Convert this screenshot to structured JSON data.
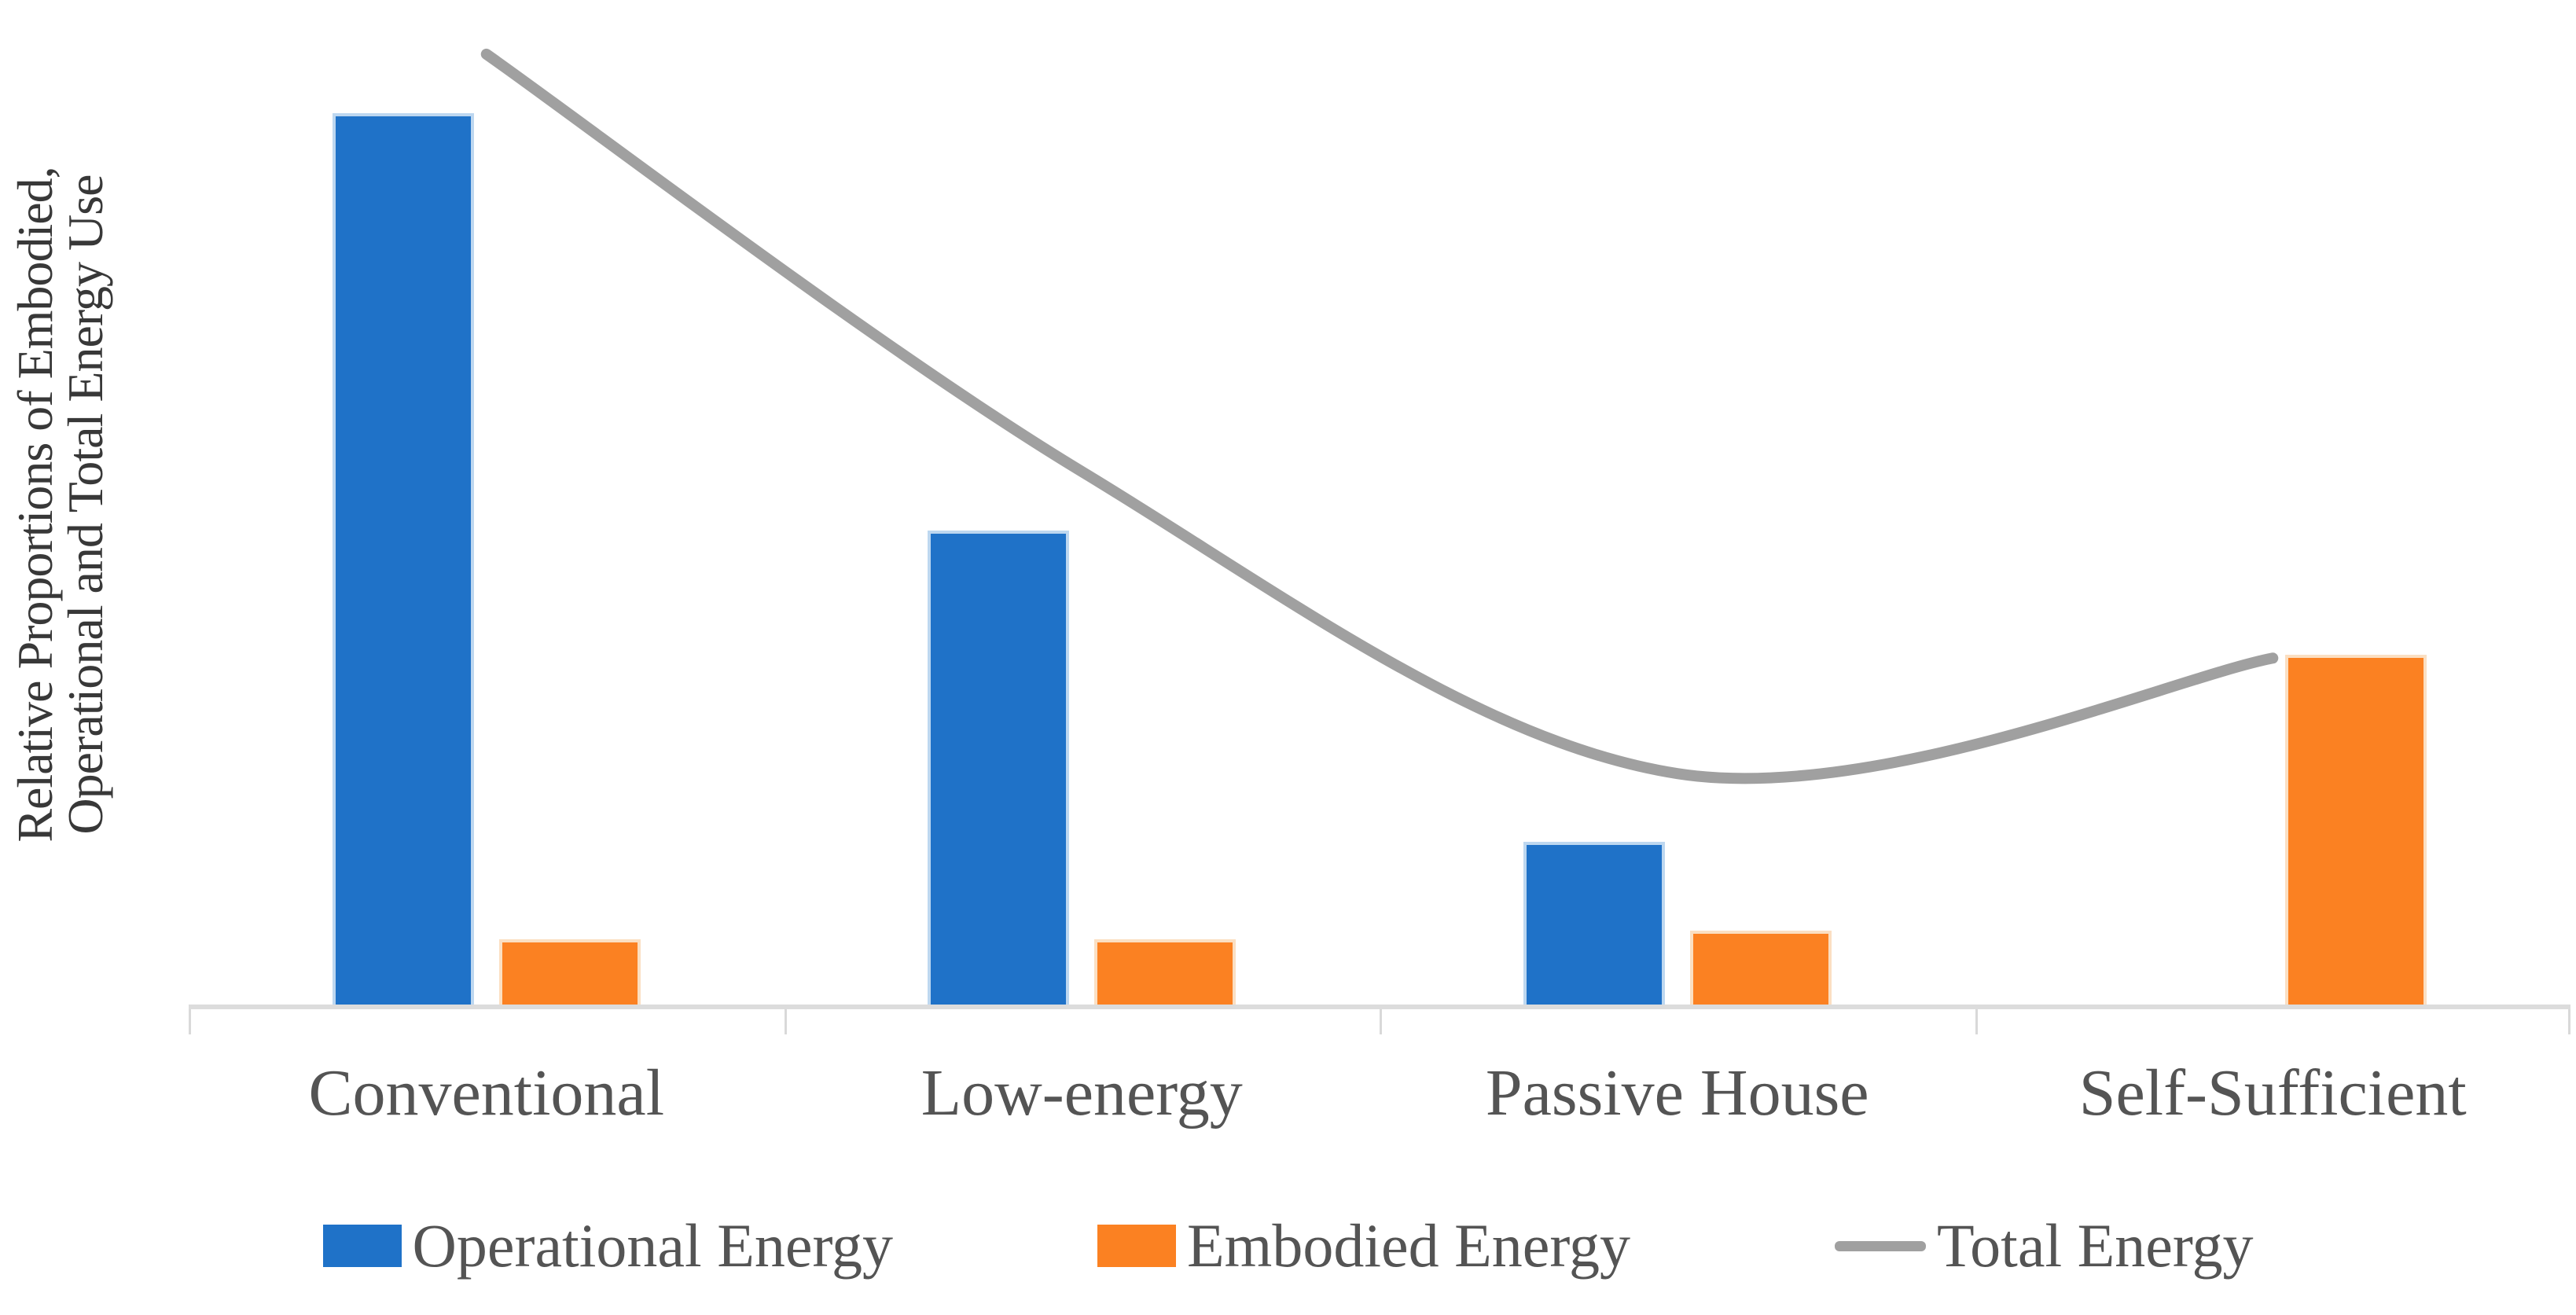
{
  "chart_data": {
    "type": "bar",
    "overlay": "line",
    "categories": [
      "Conventional",
      "Low-energy",
      "Passive House",
      "Self-Sufficient"
    ],
    "series": [
      {
        "name": "Operational Energy",
        "type": "bar",
        "color": "#1f72c8",
        "values": [
          100,
          53,
          18,
          0
        ]
      },
      {
        "name": "Embodied Energy",
        "type": "bar",
        "color": "#fb8122",
        "values": [
          7,
          7,
          8,
          39
        ]
      },
      {
        "name": "Total Energy",
        "type": "line",
        "color": "#a0a0a0",
        "values": [
          107,
          60,
          26,
          39
        ]
      }
    ],
    "title": "",
    "xlabel": "",
    "ylabel": "Relative Proportions of Embodied, Operational and Total Energy Use",
    "ylabel_line1": "Relative Proportions of Embodied,",
    "ylabel_line2": "Operational and Total Energy Use",
    "ylim": [
      0,
      113
    ],
    "y_axis_tick_labels": "none",
    "gridlines": "off",
    "legend_position": "bottom",
    "axis_line_color": "#d9d9d9"
  }
}
